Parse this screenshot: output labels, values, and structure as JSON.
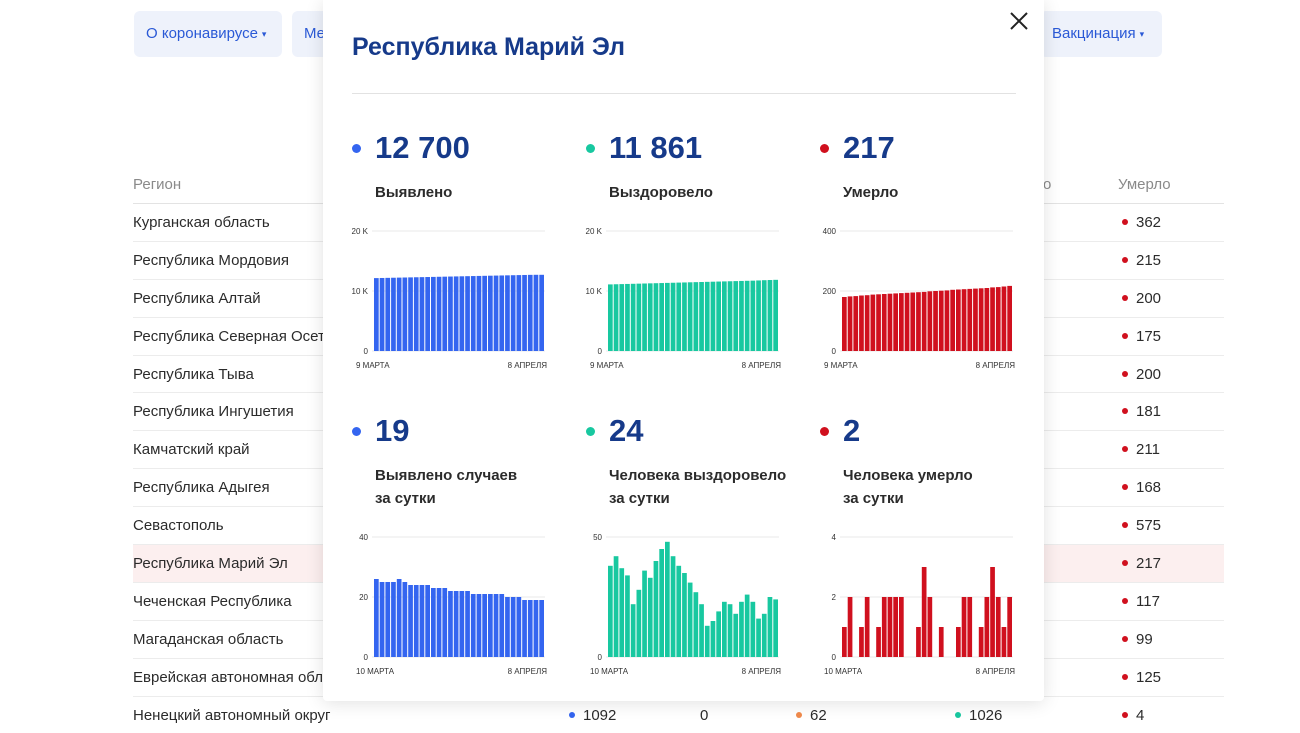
{
  "nav": {
    "items": [
      {
        "label": "О коронавирусе",
        "caret": "▾"
      },
      {
        "label": "Ме",
        "caret": ""
      },
      {
        "label": "Вакцинация",
        "caret": "▾"
      }
    ]
  },
  "table": {
    "headers": {
      "region": "Регион",
      "partial": "о",
      "died": "Умерло"
    },
    "rows": [
      {
        "region": "Курганская область",
        "died": "362"
      },
      {
        "region": "Республика Мордовия",
        "died": "215"
      },
      {
        "region": "Республика Алтай",
        "died": "200"
      },
      {
        "region": "Республика Северная Осет",
        "died": "175"
      },
      {
        "region": "Республика Тыва",
        "died": "200"
      },
      {
        "region": "Республика Ингушетия",
        "died": "181"
      },
      {
        "region": "Камчатский край",
        "died": "211"
      },
      {
        "region": "Республика Адыгея",
        "died": "168"
      },
      {
        "region": "Севастополь",
        "died": "575"
      },
      {
        "region": "Республика Марий Эл",
        "died": "217"
      },
      {
        "region": "Чеченская Республика",
        "died": "117"
      },
      {
        "region": "Магаданская область",
        "died": "99"
      },
      {
        "region": "Еврейская автономная обл",
        "died": "125"
      }
    ],
    "last_row": {
      "region": "Ненецкий автономный округ",
      "detected": "1092",
      "active_delta": "0",
      "active": "62",
      "recovered": "1026",
      "died": "4"
    }
  },
  "modal": {
    "title": "Республика Марий Эл",
    "close_icon": "close-icon",
    "stats": [
      {
        "value": "12 700",
        "label1": "Выявлено",
        "label2": "",
        "color": "#3465f0"
      },
      {
        "value": "11 861",
        "label1": "Выздоровело",
        "label2": "",
        "color": "#18c8a0"
      },
      {
        "value": "217",
        "label1": "Умерло",
        "label2": "",
        "color": "#d0101e"
      },
      {
        "value": "19",
        "label1": "Выявлено случаев",
        "label2": "за сутки",
        "color": "#3465f0"
      },
      {
        "value": "24",
        "label1": "Человека выздоровело",
        "label2": "за сутки",
        "color": "#18c8a0"
      },
      {
        "value": "2",
        "label1": "Человека умерло",
        "label2": "за сутки",
        "color": "#d0101e"
      }
    ]
  },
  "chart_data": [
    {
      "type": "bar",
      "name": "cumulative-detected",
      "color": "#3465f0",
      "ylim": [
        0,
        20000
      ],
      "yticks": [
        {
          "v": 0,
          "label": "0"
        },
        {
          "v": 10000,
          "label": "10 K"
        },
        {
          "v": 20000,
          "label": "20 K"
        }
      ],
      "xlabels": [
        "9 МАРТА",
        "8 АПРЕЛЯ"
      ],
      "values": [
        12150,
        12170,
        12190,
        12210,
        12230,
        12250,
        12270,
        12290,
        12310,
        12330,
        12350,
        12370,
        12390,
        12410,
        12430,
        12450,
        12470,
        12490,
        12510,
        12530,
        12550,
        12570,
        12590,
        12610,
        12630,
        12650,
        12670,
        12690,
        12700,
        12700
      ]
    },
    {
      "type": "bar",
      "name": "cumulative-recovered",
      "color": "#18c8a0",
      "ylim": [
        0,
        20000
      ],
      "yticks": [
        {
          "v": 0,
          "label": "0"
        },
        {
          "v": 10000,
          "label": "10 K"
        },
        {
          "v": 20000,
          "label": "20 K"
        }
      ],
      "xlabels": [
        "9 МАРТА",
        "8 АПРЕЛЯ"
      ],
      "values": [
        11100,
        11125,
        11150,
        11175,
        11200,
        11225,
        11250,
        11275,
        11300,
        11325,
        11350,
        11375,
        11400,
        11425,
        11450,
        11475,
        11500,
        11525,
        11550,
        11575,
        11600,
        11625,
        11650,
        11675,
        11700,
        11725,
        11760,
        11800,
        11830,
        11861
      ]
    },
    {
      "type": "bar",
      "name": "cumulative-deaths",
      "color": "#d0101e",
      "ylim": [
        0,
        400
      ],
      "yticks": [
        {
          "v": 0,
          "label": "0"
        },
        {
          "v": 200,
          "label": "200"
        },
        {
          "v": 400,
          "label": "400"
        }
      ],
      "xlabels": [
        "9 МАРТА",
        "8 АПРЕЛЯ"
      ],
      "values": [
        180,
        182,
        183,
        185,
        186,
        188,
        189,
        190,
        191,
        192,
        193,
        194,
        195,
        196,
        197,
        199,
        200,
        201,
        202,
        204,
        205,
        206,
        207,
        208,
        209,
        210,
        212,
        213,
        215,
        217
      ]
    },
    {
      "type": "bar",
      "name": "daily-detected",
      "color": "#3465f0",
      "ylim": [
        0,
        40
      ],
      "yticks": [
        {
          "v": 0,
          "label": "0"
        },
        {
          "v": 20,
          "label": "20"
        },
        {
          "v": 40,
          "label": "40"
        }
      ],
      "xlabels": [
        "10 МАРТА",
        "8 АПРЕЛЯ"
      ],
      "values": [
        26,
        25,
        25,
        25,
        26,
        25,
        24,
        24,
        24,
        24,
        23,
        23,
        23,
        22,
        22,
        22,
        22,
        21,
        21,
        21,
        21,
        21,
        21,
        20,
        20,
        20,
        19,
        19,
        19,
        19
      ]
    },
    {
      "type": "bar",
      "name": "daily-recovered",
      "color": "#18c8a0",
      "ylim": [
        0,
        50
      ],
      "yticks": [
        {
          "v": 0,
          "label": "0"
        },
        {
          "v": 50,
          "label": "50"
        }
      ],
      "xlabels": [
        "10 МАРТА",
        "8 АПРЕЛЯ"
      ],
      "values": [
        38,
        42,
        37,
        34,
        22,
        28,
        36,
        33,
        40,
        45,
        48,
        42,
        38,
        35,
        31,
        27,
        22,
        13,
        15,
        19,
        23,
        22,
        18,
        23,
        26,
        23,
        16,
        18,
        25,
        24
      ]
    },
    {
      "type": "bar",
      "name": "daily-deaths",
      "color": "#d0101e",
      "ylim": [
        0,
        4
      ],
      "yticks": [
        {
          "v": 0,
          "label": "0"
        },
        {
          "v": 2,
          "label": "2"
        },
        {
          "v": 4,
          "label": "4"
        }
      ],
      "xlabels": [
        "10 МАРТА",
        "8 АПРЕЛЯ"
      ],
      "values": [
        1,
        2,
        0,
        1,
        2,
        0,
        1,
        2,
        2,
        2,
        2,
        0,
        0,
        1,
        3,
        2,
        0,
        1,
        0,
        0,
        1,
        2,
        2,
        0,
        1,
        2,
        3,
        2,
        1,
        2
      ]
    }
  ]
}
